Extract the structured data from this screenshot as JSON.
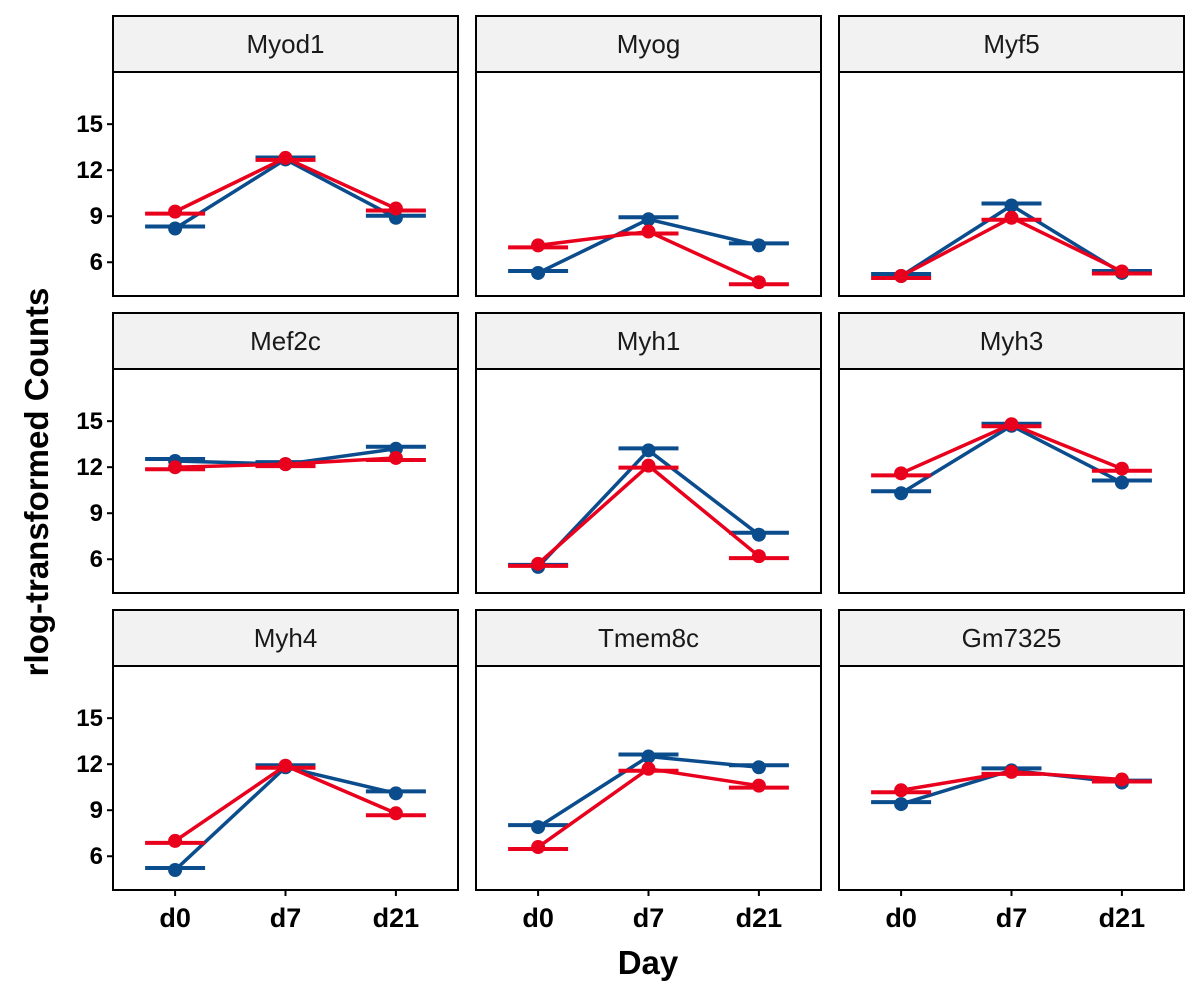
{
  "chart_data": {
    "type": "line",
    "facets": [
      "Myod1",
      "Myog",
      "Myf5",
      "Mef2c",
      "Myh1",
      "Myh3",
      "Myh4",
      "Tmem8c",
      "Gm7325"
    ],
    "categories": [
      "d0",
      "d7",
      "d21"
    ],
    "xlabel": "Day",
    "ylabel": "rlog-transformed Counts",
    "yticks": [
      6,
      9,
      12,
      15
    ],
    "ylim": [
      3.8,
      18.4
    ],
    "grid": false,
    "legend": "none",
    "series": [
      {
        "color": "#0b4c8c",
        "values": [
          [
            8.2,
            12.7,
            8.9
          ],
          [
            5.3,
            8.8,
            7.1
          ],
          [
            5.1,
            9.7,
            5.3
          ],
          [
            12.4,
            12.2,
            13.2
          ],
          [
            5.5,
            13.1,
            7.6
          ],
          [
            10.3,
            14.7,
            11.0
          ],
          [
            5.1,
            11.8,
            10.1
          ],
          [
            7.9,
            12.5,
            11.8
          ],
          [
            9.4,
            11.6,
            10.8
          ]
        ]
      },
      {
        "color": "#e8001c",
        "values": [
          [
            9.3,
            12.8,
            9.5
          ],
          [
            7.1,
            8.0,
            4.7
          ],
          [
            5.1,
            8.9,
            5.4
          ],
          [
            12.0,
            12.2,
            12.6
          ],
          [
            5.7,
            12.1,
            6.2
          ],
          [
            11.6,
            14.8,
            11.9
          ],
          [
            7.0,
            11.9,
            8.8
          ],
          [
            6.6,
            11.7,
            10.6
          ],
          [
            10.3,
            11.5,
            11.0
          ]
        ]
      }
    ]
  }
}
